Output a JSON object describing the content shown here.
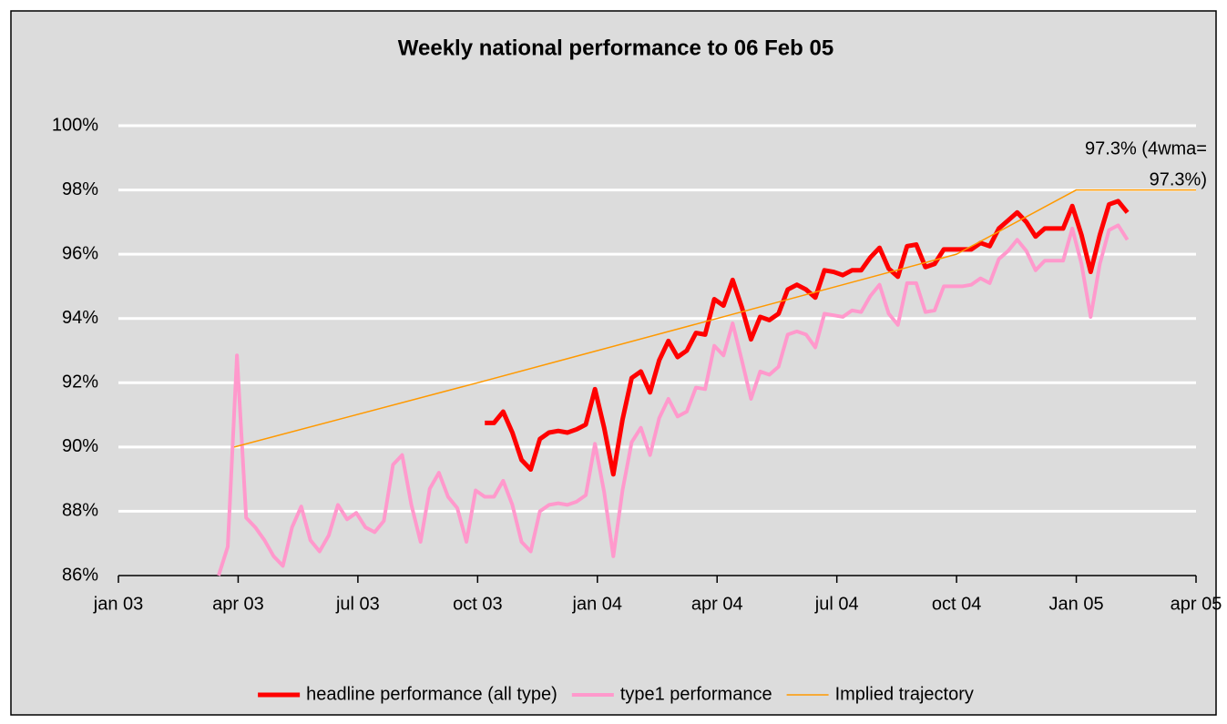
{
  "chart_data": {
    "type": "line",
    "title": "Weekly national performance to 06 Feb 05",
    "annotation": [
      "97.3% (4wma=",
      "97.3%)"
    ],
    "xlim": [
      0,
      27
    ],
    "xticks": [
      {
        "value": 0,
        "label": "jan 03"
      },
      {
        "value": 3,
        "label": "apr 03"
      },
      {
        "value": 6,
        "label": "jul 03"
      },
      {
        "value": 9,
        "label": "oct 03"
      },
      {
        "value": 12,
        "label": "jan 04"
      },
      {
        "value": 15,
        "label": "apr 04"
      },
      {
        "value": 18,
        "label": "jul 04"
      },
      {
        "value": 21,
        "label": "oct 04"
      },
      {
        "value": 24,
        "label": "Jan 05"
      },
      {
        "value": 27,
        "label": "apr 05"
      }
    ],
    "ylim": [
      86,
      100
    ],
    "yticks": [
      {
        "value": 86,
        "label": "86%"
      },
      {
        "value": 88,
        "label": "88%"
      },
      {
        "value": 90,
        "label": "90%"
      },
      {
        "value": 92,
        "label": "92%"
      },
      {
        "value": 94,
        "label": "94%"
      },
      {
        "value": 96,
        "label": "96%"
      },
      {
        "value": 98,
        "label": "98%"
      },
      {
        "value": 100,
        "label": "100%"
      }
    ],
    "grid": true,
    "legend": "bottom",
    "x": [
      2.51,
      2.74,
      2.97,
      3.2,
      3.43,
      3.66,
      3.89,
      4.12,
      4.35,
      4.58,
      4.81,
      5.04,
      5.27,
      5.5,
      5.73,
      5.96,
      6.19,
      6.42,
      6.65,
      6.88,
      7.11,
      7.34,
      7.57,
      7.8,
      8.03,
      8.26,
      8.49,
      8.72,
      8.95,
      9.18,
      9.41,
      9.64,
      9.87,
      10.1,
      10.33,
      10.56,
      10.79,
      11.02,
      11.25,
      11.48,
      11.71,
      11.94,
      12.17,
      12.4,
      12.63,
      12.86,
      13.09,
      13.32,
      13.55,
      13.78,
      14.01,
      14.24,
      14.47,
      14.7,
      14.93,
      15.16,
      15.39,
      15.62,
      15.85,
      16.08,
      16.31,
      16.54,
      16.77,
      17.0,
      17.23,
      17.46,
      17.69,
      17.92,
      18.15,
      18.38,
      18.61,
      18.84,
      19.07,
      19.3,
      19.53,
      19.76,
      19.99,
      20.22,
      20.45,
      20.68,
      20.91,
      21.14,
      21.37,
      21.6,
      21.83,
      22.06,
      22.29,
      22.52,
      22.75,
      22.98,
      23.21,
      23.44,
      23.67,
      23.9,
      24.13,
      24.36,
      24.59,
      24.82,
      25.05,
      25.28
    ],
    "series": [
      {
        "name": "headline performance (all type)",
        "color": "#ff0000",
        "width": 5,
        "values": [
          null,
          null,
          null,
          null,
          null,
          null,
          null,
          null,
          null,
          null,
          null,
          null,
          null,
          null,
          null,
          null,
          null,
          null,
          null,
          null,
          null,
          null,
          null,
          null,
          null,
          null,
          null,
          null,
          null,
          90.75,
          90.75,
          91.1,
          90.45,
          89.6,
          89.3,
          90.25,
          90.45,
          90.5,
          90.45,
          90.55,
          90.7,
          91.8,
          90.6,
          89.15,
          90.85,
          92.15,
          92.35,
          91.7,
          92.7,
          93.3,
          92.8,
          93.0,
          93.55,
          93.5,
          94.6,
          94.4,
          95.2,
          94.35,
          93.35,
          94.05,
          93.95,
          94.15,
          94.9,
          95.05,
          94.9,
          94.65,
          95.5,
          95.45,
          95.35,
          95.5,
          95.5,
          95.9,
          96.2,
          95.55,
          95.3,
          96.25,
          96.3,
          95.6,
          95.7,
          96.15,
          96.15,
          96.15,
          96.15,
          96.35,
          96.25,
          96.8,
          97.05,
          97.3,
          97.0,
          96.55,
          96.8,
          96.8,
          96.8,
          97.5,
          96.6,
          95.45,
          96.6,
          97.55,
          97.65,
          97.3
        ]
      },
      {
        "name": "type1 performance",
        "color": "#ff99cc",
        "width": 4,
        "values": [
          86.0,
          86.9,
          92.85,
          87.8,
          87.5,
          87.1,
          86.6,
          86.3,
          87.5,
          88.15,
          87.1,
          86.75,
          87.25,
          88.2,
          87.75,
          87.95,
          87.5,
          87.35,
          87.7,
          89.45,
          89.75,
          88.2,
          87.05,
          88.7,
          89.2,
          88.45,
          88.1,
          87.05,
          88.65,
          88.45,
          88.45,
          88.95,
          88.2,
          87.05,
          86.75,
          88.0,
          88.2,
          88.25,
          88.2,
          88.3,
          88.5,
          90.1,
          88.6,
          86.6,
          88.65,
          90.15,
          90.6,
          89.75,
          90.9,
          91.5,
          90.95,
          91.1,
          91.85,
          91.8,
          93.15,
          92.85,
          93.85,
          92.7,
          91.5,
          92.35,
          92.25,
          92.5,
          93.5,
          93.6,
          93.5,
          93.1,
          94.15,
          94.1,
          94.05,
          94.25,
          94.2,
          94.7,
          95.05,
          94.15,
          93.8,
          95.1,
          95.1,
          94.2,
          94.25,
          95.0,
          95.0,
          95.0,
          95.05,
          95.25,
          95.1,
          95.85,
          96.1,
          96.45,
          96.1,
          95.5,
          95.8,
          95.8,
          95.8,
          96.8,
          95.7,
          94.05,
          95.7,
          96.75,
          96.9,
          96.45
        ]
      },
      {
        "name": "Implied trajectory",
        "color": "#ff9900",
        "width": 1.5,
        "x": [
          2.9,
          9,
          15,
          18,
          21,
          24,
          27
        ],
        "values": [
          90,
          92,
          94,
          95,
          96,
          98,
          98
        ]
      }
    ]
  }
}
